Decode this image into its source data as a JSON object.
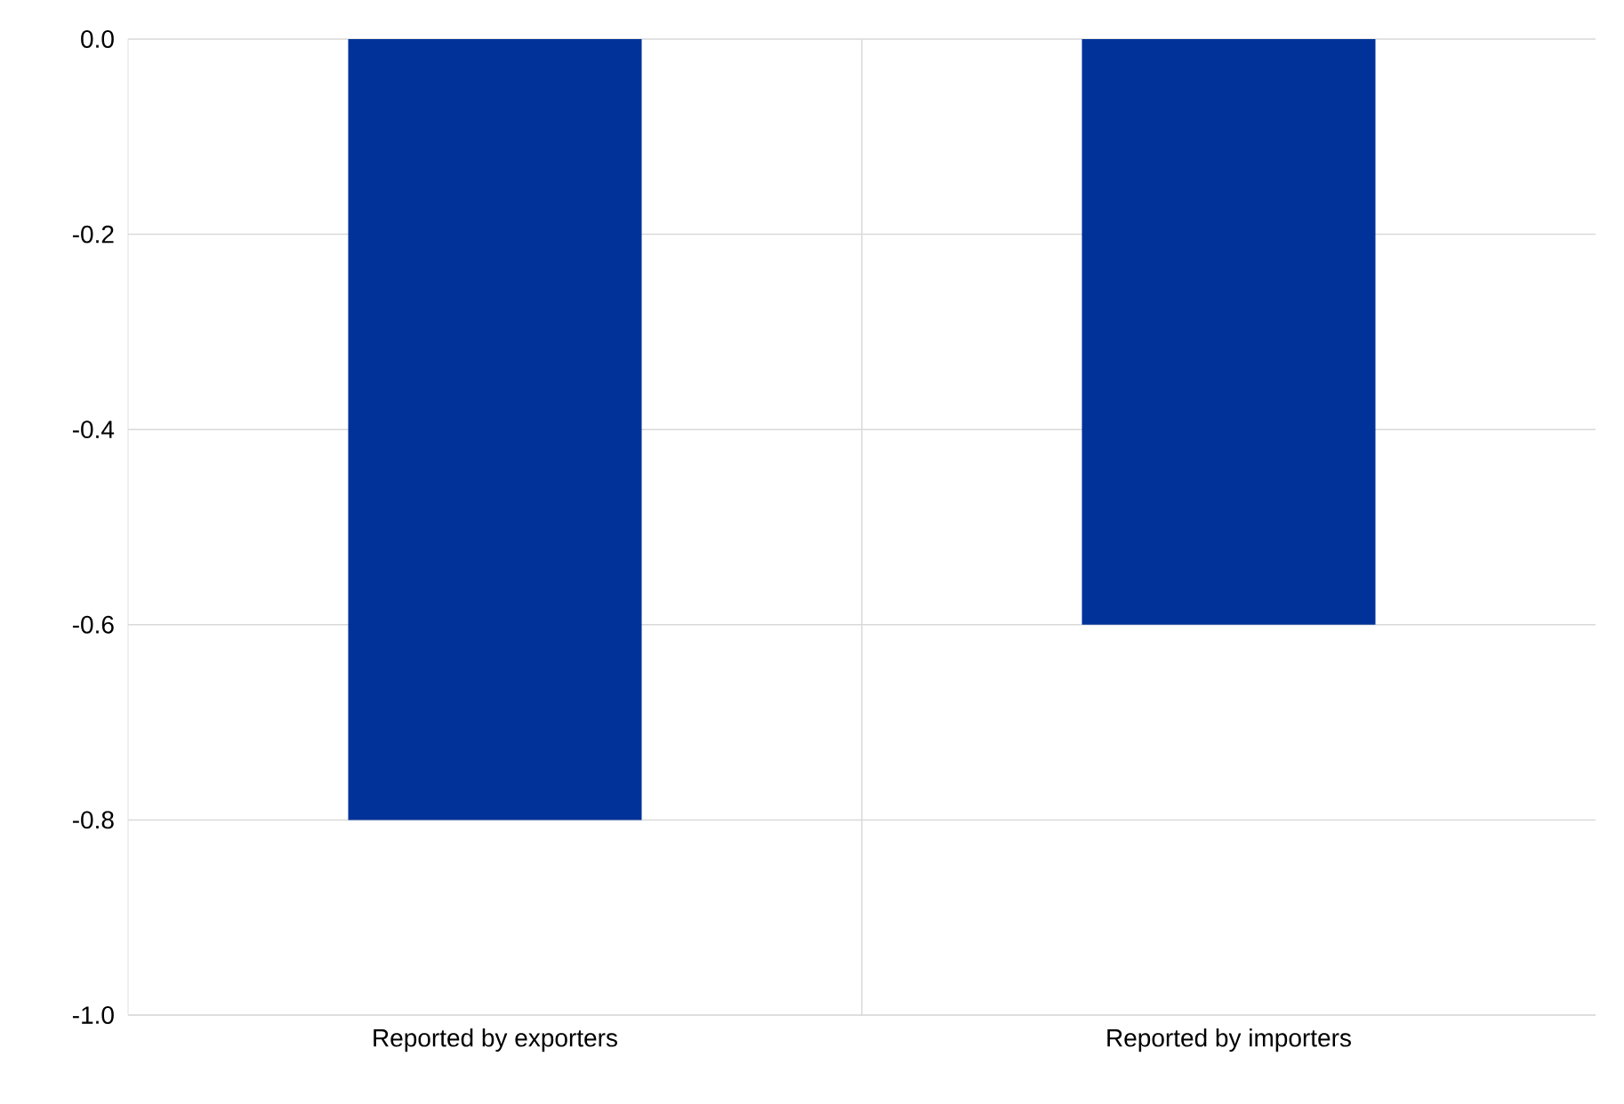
{
  "chart_data": {
    "type": "bar",
    "categories": [
      "Reported by exporters",
      "Reported by importers"
    ],
    "values": [
      -0.8,
      -0.6
    ],
    "color": "#003299",
    "ylim": [
      -1.0,
      0.0
    ],
    "yticks": [
      {
        "value": -1.0,
        "label": "-1.0"
      },
      {
        "value": -0.8,
        "label": "-0.8"
      },
      {
        "value": -0.6,
        "label": "-0.6"
      },
      {
        "value": -0.4,
        "label": "-0.4"
      },
      {
        "value": -0.2,
        "label": "-0.2"
      },
      {
        "value": 0.0,
        "label": "0.0"
      }
    ],
    "grid": true
  }
}
